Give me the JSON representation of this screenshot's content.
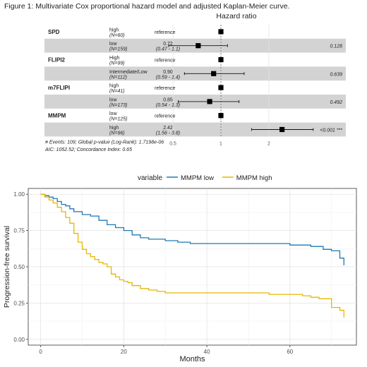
{
  "figure_caption": "Figure 1:  Multivariate Cox proportional hazard model and adjusted Kaplan-Meier curve.",
  "chart_data": [
    {
      "type": "forest",
      "title": "Hazard ratio",
      "x_scale": "log",
      "xlim": [
        0.42,
        3.3
      ],
      "x_ticks": [
        {
          "value": 0.5,
          "label": "0.5"
        },
        {
          "value": 1,
          "label": "1"
        },
        {
          "value": 2,
          "label": "2"
        }
      ],
      "reference_line": 1,
      "rows": [
        {
          "variable": "SPD",
          "level": "high",
          "n": "(N=60)",
          "estimate_text": "reference",
          "ci_text": "",
          "hr": 1,
          "lower": null,
          "upper": null,
          "p": "",
          "shaded": false
        },
        {
          "variable": "",
          "level": "low",
          "n": "(N=159)",
          "estimate_text": "0.72",
          "ci_text": "(0.47 - 1.1)",
          "hr": 0.72,
          "lower": 0.47,
          "upper": 1.1,
          "p": "0.128",
          "shaded": true
        },
        {
          "variable": "FLIPI2",
          "level": "High",
          "n": "(N=99)",
          "estimate_text": "reference",
          "ci_text": "",
          "hr": 1,
          "lower": null,
          "upper": null,
          "p": "",
          "shaded": false
        },
        {
          "variable": "",
          "level": "Intermediate/Low",
          "n": "(N=112)",
          "estimate_text": "0.90",
          "ci_text": "(0.59 - 1.4)",
          "hr": 0.9,
          "lower": 0.59,
          "upper": 1.4,
          "p": "0.639",
          "shaded": true
        },
        {
          "variable": "m7FLIPI",
          "level": "high",
          "n": "(N=41)",
          "estimate_text": "reference",
          "ci_text": "",
          "hr": 1,
          "lower": null,
          "upper": null,
          "p": "",
          "shaded": false
        },
        {
          "variable": "",
          "level": "low",
          "n": "(N=173)",
          "estimate_text": "0.85",
          "ci_text": "(0.54 - 1.3)",
          "hr": 0.85,
          "lower": 0.54,
          "upper": 1.3,
          "p": "0.492",
          "shaded": true
        },
        {
          "variable": "MMPM",
          "level": "low",
          "n": "(N=125)",
          "estimate_text": "reference",
          "ci_text": "",
          "hr": 1,
          "lower": null,
          "upper": null,
          "p": "",
          "shaded": false
        },
        {
          "variable": "",
          "level": "high",
          "n": "(N=96)",
          "estimate_text": "2.42",
          "ci_text": "(1.56 - 3.8)",
          "hr": 2.42,
          "lower": 1.56,
          "upper": 3.8,
          "p": "<0.001 ***",
          "shaded": true
        }
      ],
      "footnotes": [
        "# Events: 109; Global p-value (Log-Rank): 1.7198e-06",
        "AIC: 1052.52; Concordance Index: 0.65"
      ],
      "colors": {
        "shade": "#d3d3d3",
        "point": "#000000"
      }
    },
    {
      "type": "line",
      "step": true,
      "legend_title": "variable",
      "legend_position": "top",
      "xlabel": "Months",
      "ylabel": "Progression-free survival",
      "xlim": [
        -3,
        76
      ],
      "ylim": [
        -0.04,
        1.04
      ],
      "x_ticks": [
        0,
        20,
        40,
        60
      ],
      "y_ticks": [
        "0.00",
        "0.25",
        "0.50",
        "0.75",
        "1.00"
      ],
      "grid": true,
      "series": [
        {
          "name": "MMPM low",
          "color": "#1f78b4",
          "x": [
            0,
            1,
            2,
            3,
            4,
            5,
            6,
            7,
            8,
            10,
            12,
            14,
            16,
            18,
            20,
            22,
            24,
            26,
            28,
            30,
            33,
            36,
            40,
            45,
            50,
            55,
            60,
            65,
            68,
            70,
            71,
            72,
            73
          ],
          "y": [
            1.0,
            0.99,
            0.98,
            0.97,
            0.95,
            0.93,
            0.92,
            0.9,
            0.88,
            0.86,
            0.85,
            0.82,
            0.79,
            0.77,
            0.75,
            0.72,
            0.7,
            0.69,
            0.69,
            0.68,
            0.67,
            0.66,
            0.66,
            0.66,
            0.66,
            0.66,
            0.65,
            0.64,
            0.62,
            0.61,
            0.61,
            0.56,
            0.51
          ]
        },
        {
          "name": "MMPM high",
          "color": "#e6b800",
          "x": [
            0,
            1,
            2,
            3,
            4,
            5,
            6,
            7,
            8,
            9,
            10,
            11,
            12,
            13,
            14,
            15,
            16,
            17,
            18,
            19,
            20,
            21,
            22,
            24,
            26,
            28,
            30,
            35,
            40,
            45,
            50,
            55,
            60,
            63,
            65,
            67,
            70,
            71,
            72,
            73
          ],
          "y": [
            1.0,
            0.98,
            0.96,
            0.94,
            0.91,
            0.88,
            0.84,
            0.8,
            0.73,
            0.67,
            0.62,
            0.59,
            0.57,
            0.55,
            0.53,
            0.52,
            0.5,
            0.45,
            0.43,
            0.41,
            0.4,
            0.39,
            0.37,
            0.35,
            0.34,
            0.33,
            0.32,
            0.32,
            0.32,
            0.32,
            0.32,
            0.31,
            0.31,
            0.3,
            0.29,
            0.28,
            0.22,
            0.22,
            0.2,
            0.15
          ]
        }
      ]
    }
  ]
}
